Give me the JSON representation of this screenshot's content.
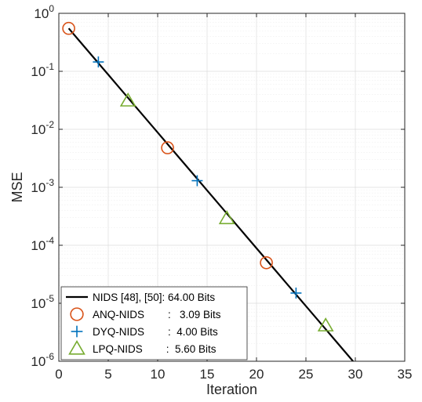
{
  "chart_data": {
    "type": "line",
    "xlabel": "Iteration",
    "ylabel": "MSE",
    "xlim": [
      0,
      35
    ],
    "ylim": [
      1e-06,
      1
    ],
    "yscale": "log",
    "grid": true,
    "x_ticks": [
      "0",
      "5",
      "10",
      "15",
      "20",
      "25",
      "30",
      "35"
    ],
    "y_ticks": [
      {
        "base": "10",
        "exp": "0"
      },
      {
        "base": "10",
        "exp": "-1"
      },
      {
        "base": "10",
        "exp": "-2"
      },
      {
        "base": "10",
        "exp": "-3"
      },
      {
        "base": "10",
        "exp": "-4"
      },
      {
        "base": "10",
        "exp": "-5"
      },
      {
        "base": "10",
        "exp": "-6"
      }
    ],
    "legend_position": "bottom-left",
    "series": [
      {
        "name": "NIDS [48], [50]: 64.00 Bits",
        "style": "line",
        "color": "#000000",
        "x": [
          1,
          30
        ],
        "y": [
          0.55,
          9e-07
        ]
      },
      {
        "name": "ANQ-NIDS        :   3.09 Bits",
        "style": "marker",
        "marker": "circle",
        "color": "#D95319",
        "x": [
          1,
          11,
          21
        ],
        "y": [
          0.55,
          0.0048,
          5e-05
        ]
      },
      {
        "name": "DYQ-NIDS        :  4.00 Bits",
        "style": "marker",
        "marker": "plus",
        "color": "#0072BD",
        "x": [
          4,
          14,
          24
        ],
        "y": [
          0.145,
          0.0013,
          1.5e-05
        ]
      },
      {
        "name": "LPQ-NIDS        :  5.60 Bits",
        "style": "marker",
        "marker": "triangle",
        "color": "#77AC30",
        "x": [
          7,
          17,
          27
        ],
        "y": [
          0.031,
          0.00029,
          4.1e-06
        ]
      }
    ]
  }
}
